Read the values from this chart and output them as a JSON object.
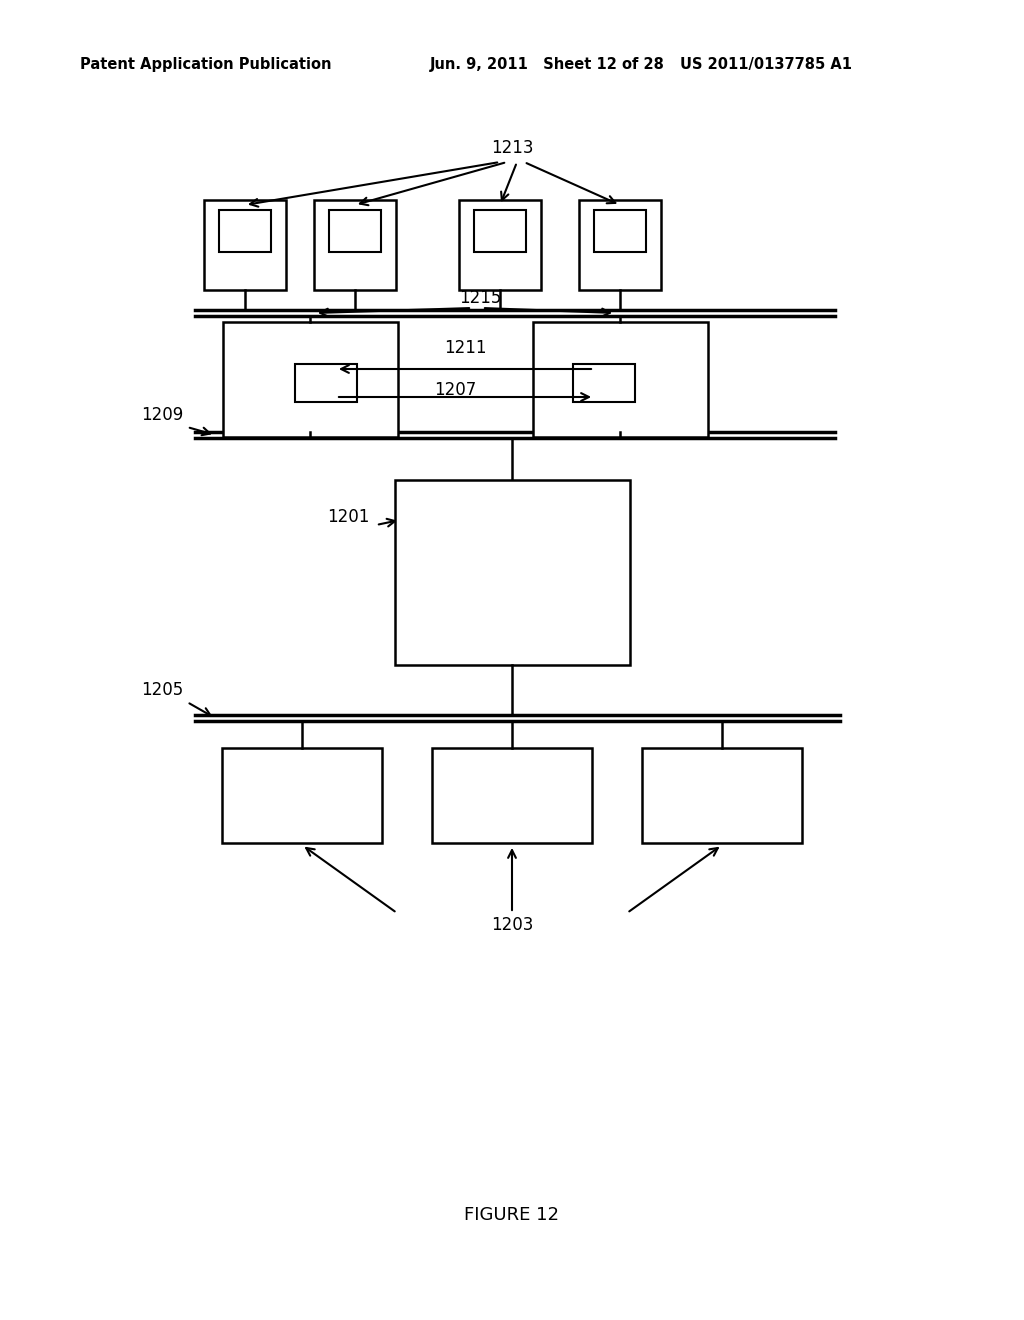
{
  "title_left": "Patent Application Publication",
  "title_mid": "Jun. 9, 2011   Sheet 12 of 28",
  "title_right": "US 2011/0137785 A1",
  "figure_label": "FIGURE 12",
  "bg_color": "#ffffff",
  "line_color": "#000000",
  "label_1213": "1213",
  "label_1215": "1215",
  "label_1211": "1211",
  "label_1207": "1207",
  "label_1209": "1209",
  "label_1201": "1201",
  "label_1205": "1205",
  "label_1203": "1203"
}
